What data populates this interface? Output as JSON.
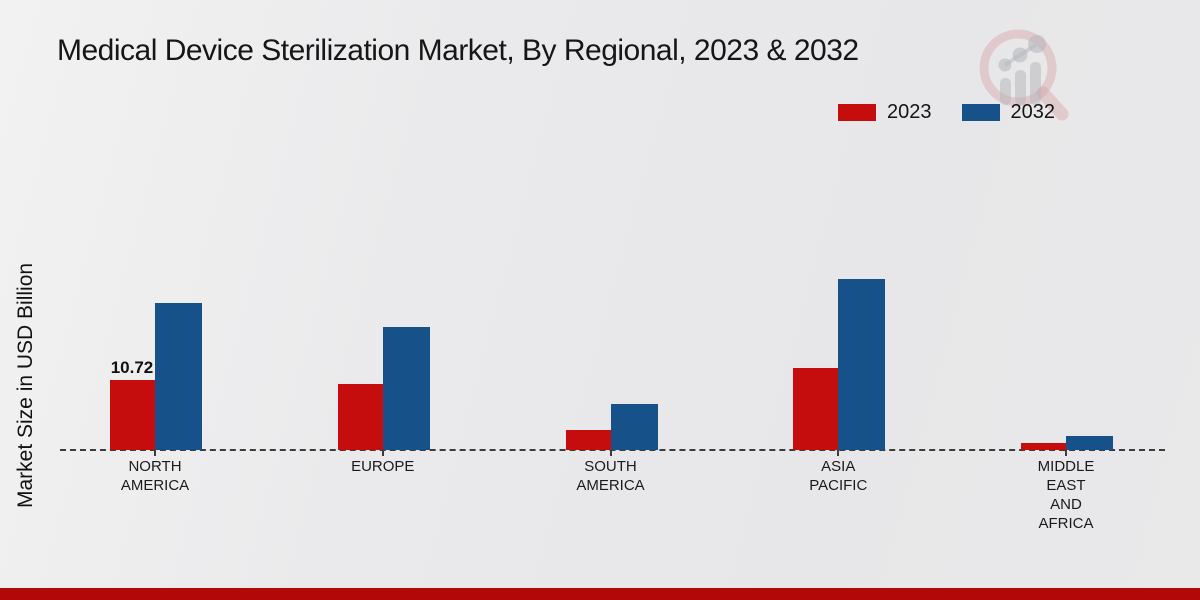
{
  "chart_data": {
    "type": "bar",
    "title": "Medical Device Sterilization Market, By Regional, 2023 & 2032",
    "ylabel": "Market Size in USD Billion",
    "categories": [
      "NORTH AMERICA",
      "EUROPE",
      "SOUTH AMERICA",
      "ASIA PACIFIC",
      "MIDDLE EAST AND AFRICA"
    ],
    "series": [
      {
        "name": "2023",
        "color": "#c60d0d",
        "values": [
          10.72,
          10.1,
          3.1,
          12.6,
          1.05
        ]
      },
      {
        "name": "2032",
        "color": "#17518a",
        "values": [
          22.5,
          18.9,
          7.0,
          26.2,
          2.2
        ]
      }
    ],
    "data_labels": [
      {
        "series_index": 0,
        "category_index": 0,
        "text": "10.72"
      }
    ],
    "baseline_style": "dashed",
    "legend_position": "top-right",
    "grid": false,
    "ylim": [
      0,
      28
    ]
  },
  "icons": {
    "watermark": "magnifier-bar-chart-logo"
  },
  "colors": {
    "series_2023": "#c60d0d",
    "series_2032": "#17518a",
    "bottom_band": "#b30808",
    "background": "#eaeaec",
    "baseline": "#3c3c3c"
  }
}
